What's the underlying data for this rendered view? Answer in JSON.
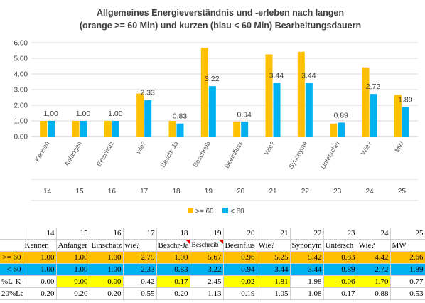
{
  "chart_data": {
    "type": "bar",
    "title": "Allgemeines Energieverständnis und -erleben nach langen",
    "subtitle": "(orange >= 60 Min) und kurzen (blau < 60 Min) Bearbeitungsdauern",
    "categories": [
      "Kennen",
      "Anfangen",
      "Einschätz",
      "wie?",
      "Beschr-Ja",
      "Beschreib",
      "Beeinfluss",
      "Wie?",
      "Synonyme",
      "Unterschei",
      "Wie?",
      "MW"
    ],
    "numbers": [
      "14",
      "15",
      "16",
      "17",
      "18",
      "19",
      "20",
      "21",
      "22",
      "23",
      "24",
      "25"
    ],
    "series": [
      {
        "name": ">= 60",
        "color": "#ffc000",
        "values": [
          1.0,
          1.0,
          1.0,
          2.75,
          1.0,
          5.67,
          0.96,
          5.25,
          5.42,
          0.83,
          4.42,
          2.66
        ]
      },
      {
        "name": "< 60",
        "color": "#00b0f0",
        "values": [
          1.0,
          1.0,
          1.0,
          2.33,
          0.83,
          3.22,
          0.94,
          3.44,
          3.44,
          0.89,
          2.72,
          1.89
        ]
      }
    ],
    "data_labels": [
      "1.00",
      "1.00",
      "1.00",
      "2.33",
      "0.83",
      "3.22",
      "0.94",
      "3.44",
      "3.44",
      "0.89",
      "2.72",
      "1.89"
    ],
    "yticks": [
      "0.00",
      "1.00",
      "2.00",
      "3.00",
      "4.00",
      "5.00",
      "6.00"
    ],
    "ylim": [
      0,
      6
    ],
    "grid": true,
    "legend_position": "bottom"
  },
  "table": {
    "header_numbers": [
      "14",
      "15",
      "16",
      "17",
      "18",
      "19",
      "20",
      "21",
      "22",
      "23",
      "24",
      "25"
    ],
    "header_labels": [
      "Kennen",
      "Anfanger",
      "Einschätz",
      "wie?",
      "Beschr-Ja",
      "Beschreib",
      "Beeinflus",
      "Wie?",
      "Synonym",
      "Untersch",
      "Wie?",
      "MW"
    ],
    "rows": [
      {
        "label": ">= 60",
        "values": [
          "1.00",
          "1.00",
          "1.00",
          "2.75",
          "1.00",
          "5.67",
          "0.96",
          "5.25",
          "5.42",
          "0.83",
          "4.42",
          "2.66"
        ]
      },
      {
        "label": "< 60",
        "values": [
          "1.00",
          "1.00",
          "1.00",
          "2.33",
          "0.83",
          "3.22",
          "0.94",
          "3.44",
          "3.44",
          "0.89",
          "2.72",
          "1.89"
        ]
      },
      {
        "label": "%L-K",
        "values": [
          "0.00",
          "0.00",
          "0.00",
          "0.42",
          "0.17",
          "2.45",
          "0.02",
          "1.81",
          "1.98",
          "-0.06",
          "1.70",
          "0.77"
        ]
      },
      {
        "label": "20%La",
        "values": [
          "0.20",
          "0.20",
          "0.20",
          "0.55",
          "0.20",
          "1.13",
          "0.19",
          "1.05",
          "1.08",
          "0.17",
          "0.88",
          "0.53"
        ]
      }
    ]
  }
}
